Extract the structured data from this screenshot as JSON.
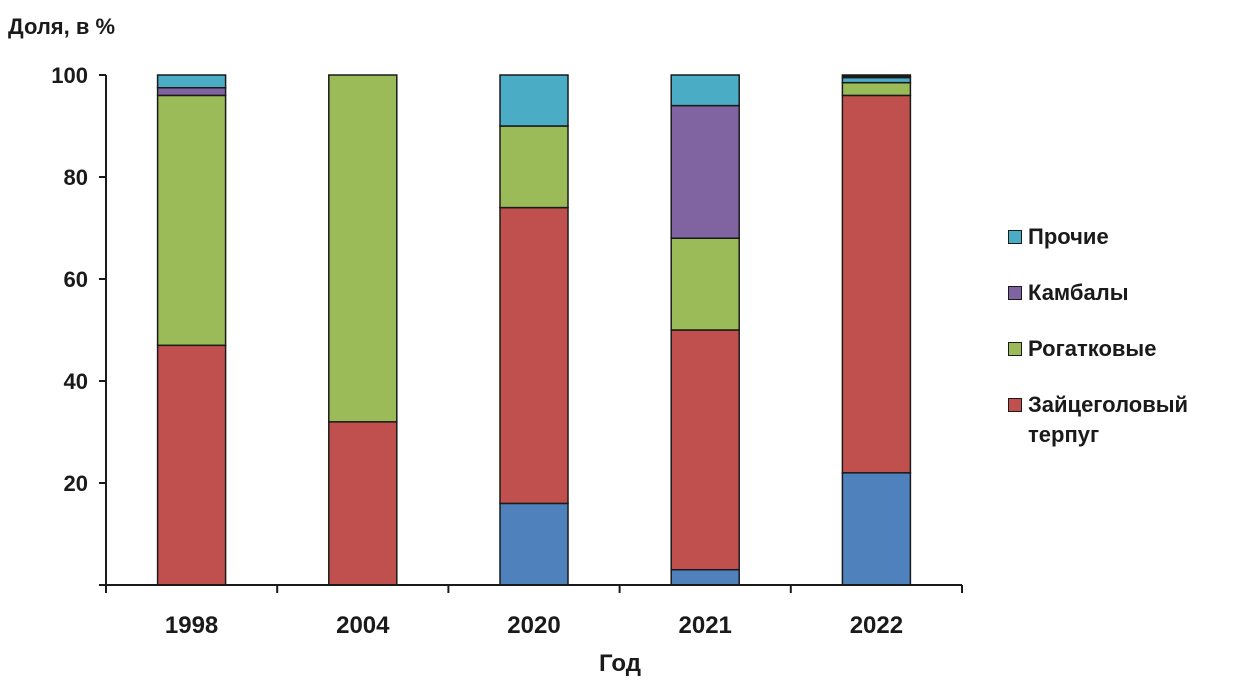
{
  "chart_data": {
    "type": "bar",
    "stacked": true,
    "ylabel": "Доля, в %",
    "xlabel": "Год",
    "ylim": [
      0,
      100
    ],
    "yticks": [
      "20",
      "40",
      "60",
      "80",
      "100"
    ],
    "categories": [
      "1998",
      "2004",
      "2020",
      "2021",
      "2022"
    ],
    "series": [
      {
        "name": "",
        "color": "#4f81bd",
        "values": [
          0,
          0,
          16,
          3,
          22
        ]
      },
      {
        "name": "Зайцеголовый\nтерпуг",
        "color": "#c0504d",
        "values": [
          47,
          32,
          58,
          47,
          74
        ]
      },
      {
        "name": "Рогатковые",
        "color": "#9bbb59",
        "values": [
          49,
          68,
          16,
          18,
          2.5
        ]
      },
      {
        "name": "Камбалы",
        "color": "#8064a2",
        "values": [
          1.5,
          0,
          0,
          26,
          0
        ]
      },
      {
        "name": "Прочие",
        "color": "#4bacc6",
        "values": [
          2.5,
          0,
          10,
          6,
          1
        ]
      }
    ],
    "extra_segments": [
      {
        "category": "2022",
        "color": "#1a1a1a",
        "value": 0.5
      }
    ],
    "legend": {
      "placement": "right",
      "entries": [
        {
          "label": "Прочие",
          "color": "#4bacc6"
        },
        {
          "label": "Камбалы",
          "color": "#8064a2"
        },
        {
          "label": "Рогатковые",
          "color": "#9bbb59"
        },
        {
          "label": "Зайцеголовый\nтерпуг",
          "color": "#c0504d"
        }
      ]
    }
  }
}
